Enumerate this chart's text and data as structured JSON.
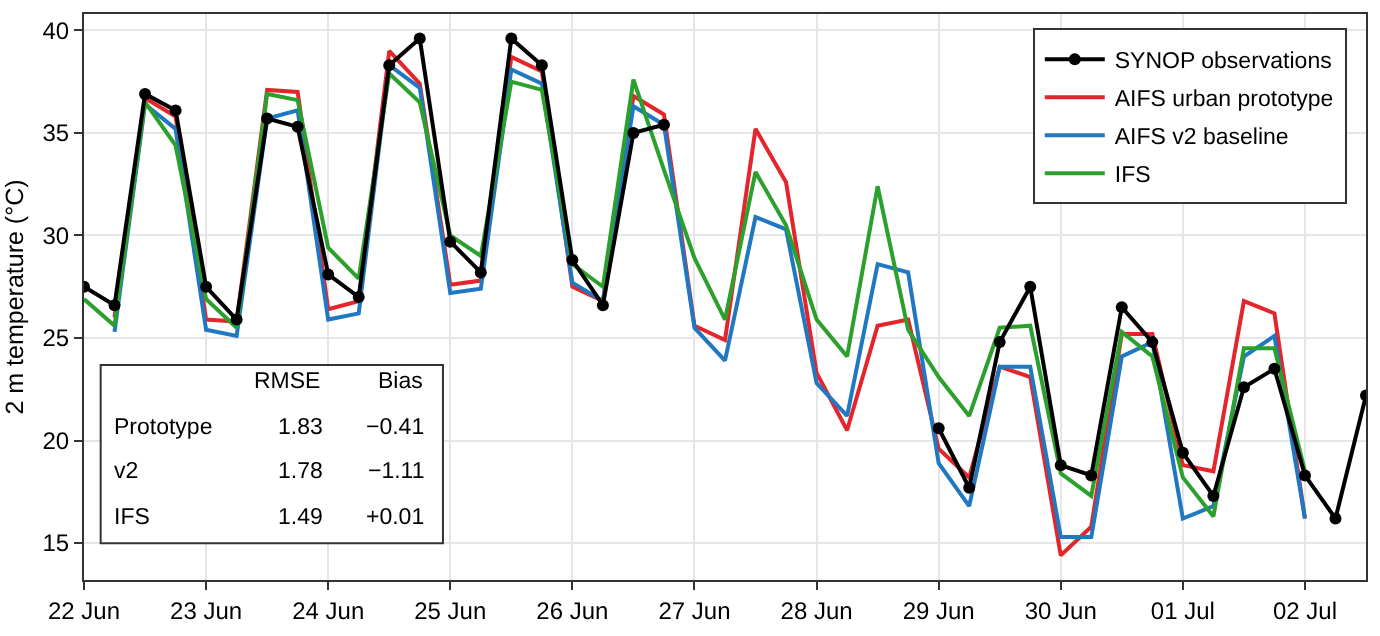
{
  "chart_data": {
    "type": "line",
    "ylabel": "2 m temperature (°C)",
    "x": [
      "--06-22T00:00",
      "--06-22T06:00",
      "--06-22T12:00",
      "--06-22T18:00",
      "--06-23T00:00",
      "--06-23T06:00",
      "--06-23T12:00",
      "--06-23T18:00",
      "--06-24T00:00",
      "--06-24T06:00",
      "--06-24T12:00",
      "--06-24T18:00",
      "--06-25T00:00",
      "--06-25T06:00",
      "--06-25T12:00",
      "--06-25T18:00",
      "--06-26T00:00",
      "--06-26T06:00",
      "--06-26T12:00",
      "--06-26T18:00",
      "--06-27T00:00",
      "--06-27T06:00",
      "--06-27T12:00",
      "--06-27T18:00",
      "--06-28T00:00",
      "--06-28T06:00",
      "--06-28T12:00",
      "--06-28T18:00",
      "--06-29T00:00",
      "--06-29T06:00",
      "--06-29T12:00",
      "--06-29T18:00",
      "--06-30T00:00",
      "--06-30T06:00",
      "--06-30T12:00",
      "--06-30T18:00",
      "--07-01T00:00",
      "--07-01T06:00",
      "--07-01T12:00",
      "--07-01T18:00",
      "--07-02T00:00",
      "--07-02T06:00",
      "--07-02T12:00"
    ],
    "series": [
      {
        "name": "SYNOP observations",
        "color": "#000000",
        "marker": "circle",
        "values": [
          27.5,
          26.6,
          36.9,
          36.1,
          27.5,
          25.9,
          35.7,
          35.3,
          28.1,
          27.0,
          38.3,
          39.6,
          29.7,
          28.2,
          39.6,
          38.3,
          28.8,
          26.6,
          35.0,
          35.4,
          null,
          null,
          null,
          null,
          null,
          null,
          null,
          null,
          20.6,
          17.7,
          24.8,
          27.5,
          18.8,
          18.3,
          26.5,
          24.8,
          19.4,
          17.3,
          22.6,
          23.5,
          18.3,
          16.2,
          22.2
        ]
      },
      {
        "name": "AIFS urban prototype",
        "color": "#e4262c",
        "marker": "none",
        "values": [
          null,
          26.0,
          36.7,
          35.8,
          25.9,
          25.8,
          37.1,
          37.0,
          26.4,
          26.8,
          39.0,
          37.4,
          27.6,
          27.8,
          38.7,
          38.0,
          27.5,
          26.8,
          36.8,
          35.9,
          25.6,
          24.9,
          35.2,
          32.6,
          23.3,
          20.5,
          25.6,
          25.9,
          19.6,
          18.2,
          23.6,
          23.1,
          14.4,
          15.8,
          25.2,
          25.2,
          18.8,
          18.5,
          26.8,
          26.2,
          16.2,
          null,
          null
        ]
      },
      {
        "name": "AIFS v2 baseline",
        "color": "#1f78c1",
        "marker": "none",
        "values": [
          null,
          25.3,
          36.4,
          35.2,
          25.4,
          25.1,
          35.7,
          36.1,
          25.9,
          26.2,
          38.3,
          37.2,
          27.2,
          27.4,
          38.1,
          37.4,
          27.7,
          26.8,
          36.3,
          35.4,
          25.5,
          23.9,
          30.9,
          30.3,
          22.8,
          21.2,
          28.6,
          28.2,
          18.9,
          16.8,
          23.6,
          23.6,
          15.3,
          15.3,
          24.1,
          24.8,
          16.2,
          16.8,
          24.1,
          25.1,
          16.2,
          null,
          null
        ]
      },
      {
        "name": "IFS",
        "color": "#2ca02c",
        "marker": "none",
        "values": [
          26.9,
          25.6,
          36.5,
          34.4,
          26.9,
          25.5,
          36.9,
          36.6,
          29.4,
          27.9,
          37.9,
          36.5,
          30.0,
          29.0,
          37.5,
          37.1,
          28.6,
          27.5,
          37.6,
          33.2,
          28.9,
          25.9,
          33.1,
          30.5,
          25.9,
          24.1,
          32.4,
          25.4,
          23.1,
          21.2,
          25.5,
          25.6,
          18.4,
          17.3,
          25.3,
          24.1,
          18.2,
          16.3,
          24.5,
          24.5,
          18.5,
          null,
          null
        ]
      }
    ],
    "xlim": [
      "--06-22T00:00",
      "--07-02T12:00"
    ],
    "xticks": [
      {
        "value": "--06-22",
        "label": "22 Jun"
      },
      {
        "value": "--06-23",
        "label": "23 Jun"
      },
      {
        "value": "--06-24",
        "label": "24 Jun"
      },
      {
        "value": "--06-25",
        "label": "25 Jun"
      },
      {
        "value": "--06-26",
        "label": "26 Jun"
      },
      {
        "value": "--06-27",
        "label": "27 Jun"
      },
      {
        "value": "--06-28",
        "label": "28 Jun"
      },
      {
        "value": "--06-29",
        "label": "29 Jun"
      },
      {
        "value": "--06-30",
        "label": "30 Jun"
      },
      {
        "value": "--07-01",
        "label": "01 Jul"
      },
      {
        "value": "--07-02",
        "label": "02 Jul"
      }
    ],
    "ylim": [
      13.2,
      40.8
    ],
    "yticks": [
      15,
      20,
      25,
      30,
      35,
      40
    ],
    "grid": true,
    "legend": "top right",
    "line_style": "solid",
    "annotations": [
      "RMSE",
      "Bias",
      "Prototype",
      "1.83",
      "−0.41",
      "v2",
      "1.78",
      "−1.11",
      "IFS",
      "1.49",
      "+0.01"
    ]
  }
}
